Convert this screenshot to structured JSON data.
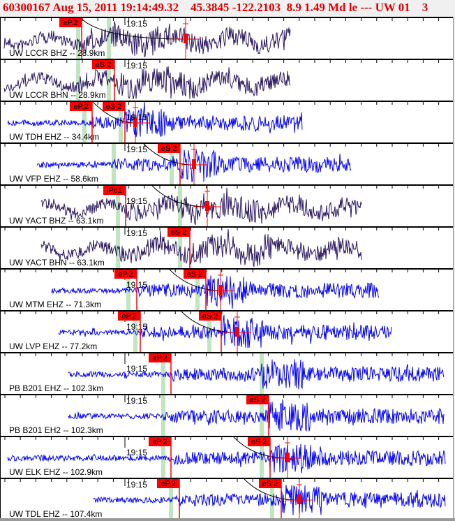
{
  "header": {
    "title": "60300167 Aug 15, 2011 19:14:49.32    45.3845 -122.2103  8.9 1.49 Md le --- UW 01    3"
  },
  "time_mark": {
    "label": "19:15",
    "t": 17.3
  },
  "colors": {
    "pick": "#ff0000",
    "theoretical": "#bfe6bf",
    "broadband": "#2b1660",
    "short_period": "#0000ff",
    "curve": "#000000"
  },
  "traces": [
    {
      "label": "UW LCCR BHZ -- 28.9km",
      "type": "broadband",
      "span": [
        0,
        41
      ],
      "P": {
        "label": "eP.2",
        "t": 11.1
      },
      "S": null,
      "theo": [
        10.6,
        15.0
      ],
      "marker": 26.0
    },
    {
      "label": "UW LCCR BHN -- 28.9km",
      "type": "broadband",
      "span": [
        0,
        41
      ],
      "P": null,
      "S": {
        "label": "eS 2",
        "t": 15.8
      },
      "theo": [
        10.6,
        15.0
      ],
      "marker": null
    },
    {
      "label": "UW TDH EHZ -- 34.4km",
      "type": "short_period",
      "span": [
        0.5,
        42.7
      ],
      "P": {
        "label": "eP.2",
        "t": 12.6
      },
      "S": {
        "label": "eS 2",
        "t": 17.3
      },
      "theo": [
        11.5,
        16.7
      ],
      "marker": 18.8
    },
    {
      "label": "UW VFP EHZ -- 58.6km",
      "type": "short_period",
      "span": [
        4.7,
        49.7
      ],
      "P": null,
      "S": {
        "label": "eS 2",
        "t": 25.2
      },
      "theo": [
        15.7,
        24.0
      ],
      "marker": 27.2
    },
    {
      "label": "UW YACT BHZ -- 63.1km",
      "type": "broadband",
      "span": [
        5.3,
        51.2
      ],
      "P": {
        "label": "iPc1",
        "t": 17.4
      },
      "S": null,
      "theo": [
        16.3,
        25.2
      ],
      "marker": 29.1
    },
    {
      "label": "UW YACT BHN -- 63.1km",
      "type": "broadband",
      "span": [
        5.3,
        51.2
      ],
      "P": null,
      "S": {
        "label": "eS 2",
        "t": 26.6
      },
      "theo": [
        16.3,
        25.2
      ],
      "marker": null
    },
    {
      "label": "UW MTM EHZ -- 71.3km",
      "type": "short_period",
      "span": [
        6.8,
        53.7
      ],
      "P": {
        "label": "eP.2",
        "t": 19.0
      },
      "S": {
        "label": "eS 2",
        "t": 28.9
      },
      "theo": [
        17.8,
        27.7
      ],
      "marker": 31.0
    },
    {
      "label": "UW LVP EHZ -- 77.2km",
      "type": "short_period",
      "span": [
        7.8,
        55.5
      ],
      "P": {
        "label": "eP.2",
        "t": 19.5
      },
      "S": {
        "label": "eS 2",
        "t": 31.1
      },
      "theo": [
        18.8,
        29.4
      ],
      "marker": 33.4
    },
    {
      "label": "PB B201 EHZ -- 102.3km",
      "type": "short_period",
      "span": [
        9.2,
        63.0
      ],
      "P": {
        "label": "eP.2",
        "t": 23.9
      },
      "S": null,
      "theo": [
        22.8,
        36.9
      ],
      "marker": null
    },
    {
      "label": "PB B201 EH2 -- 102.3km",
      "type": "short_period",
      "span": [
        9.2,
        63.0
      ],
      "P": null,
      "S": {
        "label": "eS 2",
        "t": 37.9
      },
      "theo": [
        22.8,
        36.9
      ],
      "marker": null
    },
    {
      "label": "UW ELK EHZ -- 102.9km",
      "type": "short_period",
      "span": [
        0.5,
        63.2
      ],
      "P": {
        "label": "eP.2",
        "t": 23.9
      },
      "S": {
        "label": "eS 2",
        "t": 38.1
      },
      "theo": [
        22.8,
        36.9
      ],
      "marker": 40.6
    },
    {
      "label": "UW TDL EHZ -- 107.4km",
      "type": "short_period",
      "span": [
        12.8,
        63.2
      ],
      "P": {
        "label": "eP.2",
        "t": 25.1
      },
      "S": {
        "label": "eS 2",
        "t": 39.7
      },
      "theo": [
        23.9,
        38.4
      ],
      "marker": 42.3
    }
  ]
}
